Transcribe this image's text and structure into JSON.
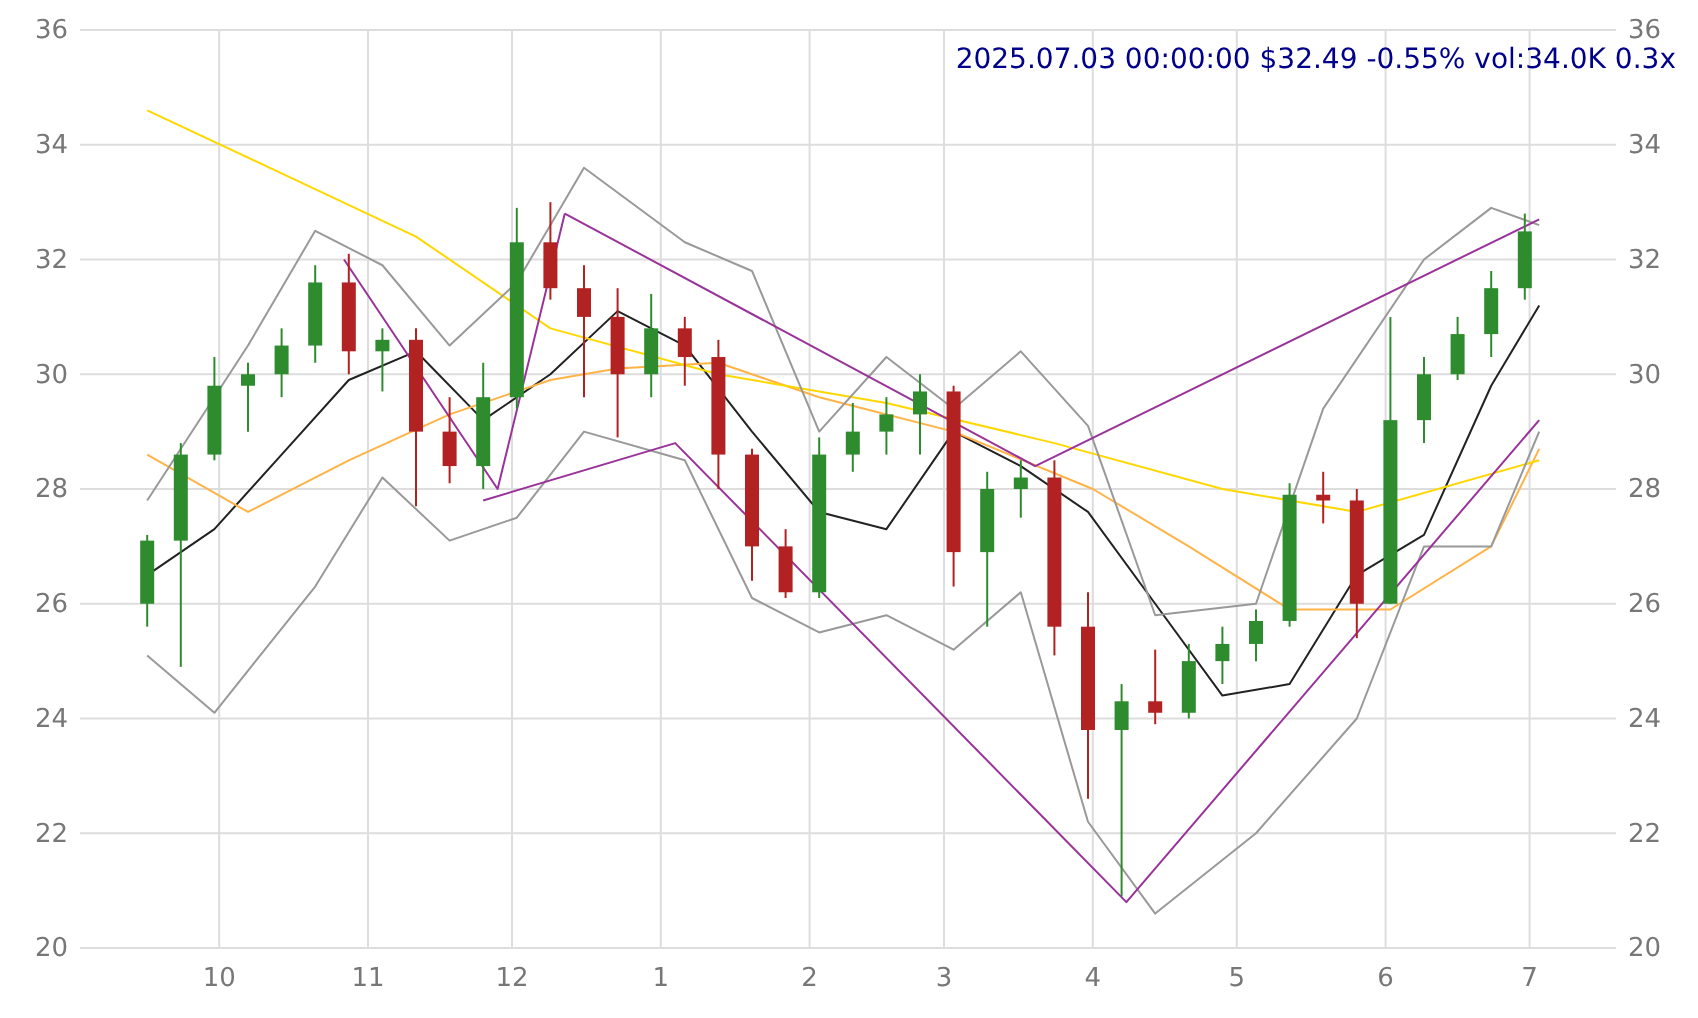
{
  "chart_data": {
    "type": "candlestick",
    "title": "2025.07.03 00:00:00 $32.49 -0.55% vol:34.0K 0.3x",
    "x": [
      "2024-09-16",
      "2024-09-23",
      "2024-09-30",
      "2024-10-07",
      "2024-10-14",
      "2024-10-21",
      "2024-10-28",
      "2024-11-04",
      "2024-11-11",
      "2024-11-18",
      "2024-11-25",
      "2024-12-02",
      "2024-12-09",
      "2024-12-16",
      "2024-12-23",
      "2024-12-30",
      "2025-01-06",
      "2025-01-13",
      "2025-01-20",
      "2025-01-27",
      "2025-02-03",
      "2025-02-10",
      "2025-02-17",
      "2025-02-24",
      "2025-03-03",
      "2025-03-10",
      "2025-03-17",
      "2025-03-24",
      "2025-03-31",
      "2025-04-07",
      "2025-04-14",
      "2025-04-21",
      "2025-04-28",
      "2025-05-05",
      "2025-05-12",
      "2025-05-19",
      "2025-05-26",
      "2025-06-02",
      "2025-06-09",
      "2025-06-16",
      "2025-06-23",
      "2025-06-30"
    ],
    "ohlc": [
      [
        26.0,
        27.2,
        25.6,
        27.1
      ],
      [
        27.1,
        28.8,
        24.9,
        28.6
      ],
      [
        28.6,
        30.3,
        28.5,
        29.8
      ],
      [
        29.8,
        30.2,
        29.0,
        30.0
      ],
      [
        30.0,
        30.8,
        29.6,
        30.5
      ],
      [
        30.5,
        31.9,
        30.2,
        31.6
      ],
      [
        31.6,
        32.1,
        30.0,
        30.4
      ],
      [
        30.4,
        30.8,
        29.7,
        30.6
      ],
      [
        30.6,
        30.8,
        27.7,
        29.0
      ],
      [
        29.0,
        29.6,
        28.1,
        28.4
      ],
      [
        28.4,
        30.2,
        28.0,
        29.6
      ],
      [
        29.6,
        32.9,
        29.4,
        32.3
      ],
      [
        32.3,
        33.0,
        31.3,
        31.5
      ],
      [
        31.5,
        31.9,
        29.6,
        31.0
      ],
      [
        31.0,
        31.5,
        28.9,
        30.0
      ],
      [
        30.0,
        31.4,
        29.6,
        30.8
      ],
      [
        30.8,
        31.0,
        29.8,
        30.3
      ],
      [
        30.3,
        30.6,
        28.0,
        28.6
      ],
      [
        28.6,
        28.7,
        26.4,
        27.0
      ],
      [
        27.0,
        27.3,
        26.1,
        26.2
      ],
      [
        26.2,
        28.9,
        26.1,
        28.6
      ],
      [
        28.6,
        29.5,
        28.3,
        29.0
      ],
      [
        29.0,
        29.6,
        28.6,
        29.3
      ],
      [
        29.3,
        30.0,
        28.6,
        29.7
      ],
      [
        29.7,
        29.8,
        26.3,
        26.9
      ],
      [
        26.9,
        28.3,
        25.6,
        28.0
      ],
      [
        28.0,
        28.5,
        27.5,
        28.2
      ],
      [
        28.2,
        28.5,
        25.1,
        25.6
      ],
      [
        25.6,
        26.2,
        22.6,
        23.8
      ],
      [
        23.8,
        24.6,
        20.9,
        24.3
      ],
      [
        24.3,
        25.2,
        23.9,
        24.1
      ],
      [
        24.1,
        25.3,
        24.0,
        25.0
      ],
      [
        25.0,
        25.6,
        24.6,
        25.3
      ],
      [
        25.3,
        25.9,
        25.0,
        25.7
      ],
      [
        25.7,
        28.1,
        25.6,
        27.9
      ],
      [
        27.9,
        28.3,
        27.4,
        27.8
      ],
      [
        27.8,
        28.0,
        25.4,
        26.0
      ],
      [
        26.0,
        31.0,
        26.0,
        29.2
      ],
      [
        29.2,
        30.3,
        28.8,
        30.0
      ],
      [
        30.0,
        31.0,
        29.9,
        30.7
      ],
      [
        30.7,
        31.8,
        30.3,
        31.5
      ],
      [
        31.5,
        32.8,
        31.3,
        32.49
      ]
    ],
    "series": [
      {
        "type": "line",
        "color": "#222222",
        "x": [
          "2024-09-16",
          "2024-09-30",
          "2024-10-14",
          "2024-10-28",
          "2024-11-11",
          "2024-11-25",
          "2024-12-09",
          "2024-12-23",
          "2025-01-06",
          "2025-01-20",
          "2025-02-03",
          "2025-02-17",
          "2025-03-03",
          "2025-03-17",
          "2025-03-31",
          "2025-04-14",
          "2025-04-28",
          "2025-05-12",
          "2025-05-26",
          "2025-06-09",
          "2025-06-23",
          "2025-07-03"
        ],
        "values": [
          26.5,
          27.3,
          28.6,
          29.9,
          30.4,
          29.2,
          30.0,
          31.1,
          30.5,
          29.0,
          27.6,
          27.3,
          29.0,
          28.4,
          27.6,
          26.0,
          24.4,
          24.6,
          26.5,
          27.2,
          29.8,
          31.2
        ]
      },
      {
        "type": "line",
        "color": "#ffb347",
        "x": [
          "2024-09-16",
          "2024-10-07",
          "2024-10-28",
          "2024-11-18",
          "2024-12-09",
          "2024-12-23",
          "2025-01-13",
          "2025-02-03",
          "2025-03-03",
          "2025-04-01",
          "2025-04-21",
          "2025-05-12",
          "2025-06-02",
          "2025-06-23",
          "2025-07-03"
        ],
        "values": [
          28.6,
          27.6,
          28.5,
          29.3,
          29.9,
          30.1,
          30.2,
          29.6,
          29.0,
          28.0,
          27.0,
          25.9,
          25.9,
          27.0,
          28.7
        ]
      },
      {
        "type": "line",
        "color": "#ffd700",
        "x": [
          "2024-09-16",
          "2024-10-14",
          "2024-11-11",
          "2024-12-09",
          "2025-01-13",
          "2025-02-17",
          "2025-03-24",
          "2025-04-28",
          "2025-05-26",
          "2025-07-03"
        ],
        "values": [
          34.6,
          33.5,
          32.4,
          30.8,
          30.0,
          29.5,
          28.8,
          28.0,
          27.6,
          28.5
        ]
      },
      {
        "type": "line",
        "color": "#999999",
        "x": [
          "2024-09-16",
          "2024-10-07",
          "2024-10-21",
          "2024-11-04",
          "2024-11-18",
          "2024-12-02",
          "2024-12-16",
          "2025-01-06",
          "2025-01-20",
          "2025-02-03",
          "2025-02-17",
          "2025-03-03",
          "2025-03-17",
          "2025-03-31",
          "2025-04-14",
          "2025-05-05",
          "2025-05-19",
          "2025-06-09",
          "2025-06-23",
          "2025-07-03"
        ],
        "values": [
          27.8,
          30.5,
          32.5,
          31.9,
          30.5,
          31.6,
          33.6,
          32.3,
          31.8,
          29.0,
          30.3,
          29.4,
          30.4,
          29.1,
          25.8,
          26.0,
          29.4,
          32.0,
          32.9,
          32.6
        ]
      },
      {
        "type": "line",
        "color": "#999999",
        "x": [
          "2024-09-16",
          "2024-09-30",
          "2024-10-21",
          "2024-11-04",
          "2024-11-18",
          "2024-12-02",
          "2024-12-16",
          "2025-01-06",
          "2025-01-20",
          "2025-02-03",
          "2025-02-17",
          "2025-03-03",
          "2025-03-17",
          "2025-03-31",
          "2025-04-14",
          "2025-05-05",
          "2025-05-26",
          "2025-06-09",
          "2025-06-23",
          "2025-07-03"
        ],
        "values": [
          25.1,
          24.1,
          26.3,
          28.2,
          27.1,
          27.5,
          29.0,
          28.5,
          26.1,
          25.5,
          25.8,
          25.2,
          26.2,
          22.2,
          20.6,
          22.0,
          24.0,
          27.0,
          27.0,
          29.0
        ]
      },
      {
        "type": "line",
        "color": "#993399",
        "x": [
          "2024-10-27",
          "2024-11-28",
          "2024-12-12"
        ],
        "values": [
          32.0,
          28.0,
          32.8
        ]
      },
      {
        "type": "line",
        "color": "#993399",
        "x": [
          "2024-11-25",
          "2025-01-04",
          "2025-04-08",
          "2025-07-03"
        ],
        "values": [
          27.8,
          28.8,
          20.8,
          29.2
        ]
      },
      {
        "type": "line",
        "color": "#993399",
        "x": [
          "2024-12-12",
          "2025-03-20",
          "2025-07-03"
        ],
        "values": [
          32.8,
          28.4,
          32.7
        ]
      }
    ],
    "xlim": [
      "2024-09-02",
      "2025-07-19"
    ],
    "xticks": [
      {
        "value": "2024-10-01",
        "label": "10"
      },
      {
        "value": "2024-11-01",
        "label": "11"
      },
      {
        "value": "2024-12-01",
        "label": "12"
      },
      {
        "value": "2025-01-01",
        "label": "1"
      },
      {
        "value": "2025-02-01",
        "label": "2"
      },
      {
        "value": "2025-03-01",
        "label": "3"
      },
      {
        "value": "2025-04-01",
        "label": "4"
      },
      {
        "value": "2025-05-01",
        "label": "5"
      },
      {
        "value": "2025-06-01",
        "label": "6"
      },
      {
        "value": "2025-07-01",
        "label": "7"
      }
    ],
    "ylim": [
      20,
      36
    ],
    "yticks": [
      20,
      22,
      24,
      26,
      28,
      30,
      32,
      34,
      36
    ],
    "y2lim": [
      20,
      36
    ],
    "y2ticks": [
      20,
      22,
      24,
      26,
      28,
      30,
      32,
      34,
      36
    ],
    "grid": true
  }
}
